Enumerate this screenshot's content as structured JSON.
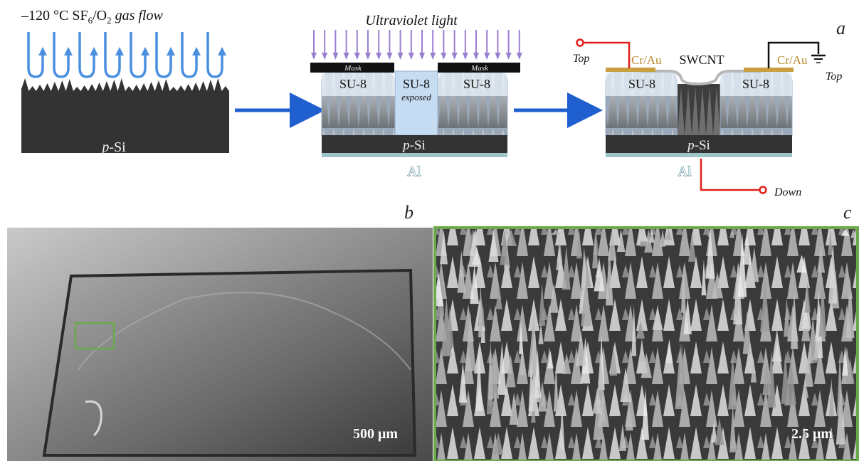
{
  "panels": {
    "a": {
      "label": "a",
      "step1": {
        "gas_flow_prefix": "–120 °C SF",
        "gas_flow_sub1": "6",
        "gas_flow_mid": "/O",
        "gas_flow_sub2": "2",
        "gas_flow_suffix": " gas flow",
        "substrate": "-Si",
        "substrate_prefix": "p"
      },
      "step2": {
        "light": "Ultraviolet light",
        "mask_left": "Mask",
        "mask_right": "Mask",
        "su8_left": "SU-8",
        "su8_center": "SU-8",
        "su8_exposed": "exposed",
        "su8_right": "SU-8",
        "substrate_prefix": "p",
        "substrate": "-Si",
        "electrode": "Al"
      },
      "step3": {
        "top_left": "Top",
        "top_right": "Top",
        "crau_left": "Cr/Au",
        "crau_right": "Cr/Au",
        "swcnt": "SWCNT",
        "su8_left": "SU-8",
        "su8_right": "SU-8",
        "substrate_prefix": "p",
        "substrate": "-Si",
        "electrode": "Al",
        "down": "Down"
      }
    },
    "b": {
      "label": "b",
      "scale_bar": "500 μm"
    },
    "c": {
      "label": "c",
      "scale_bar": "2.5 μm"
    }
  },
  "colors": {
    "gas_arrow": "#4a8fe0",
    "uv_arrow": "#9a7fd0",
    "process_arrow": "#1f5fd0",
    "wire": "#e0201a",
    "frame_highlight": "#6aaa4a",
    "crau": "#c9a040"
  }
}
